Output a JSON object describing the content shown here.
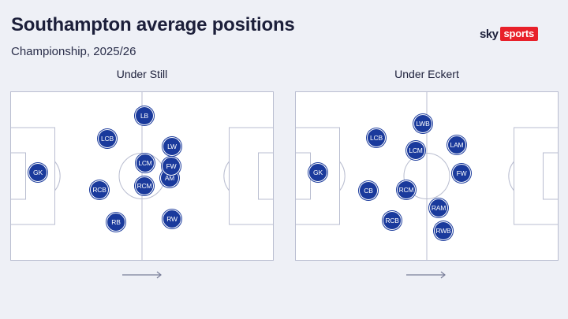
{
  "header": {
    "title": "Southampton average positions",
    "subtitle": "Championship, 2025/26"
  },
  "logo": {
    "sky": "sky",
    "sports": "sports",
    "brand_color": "#e8202a"
  },
  "pitches": [
    {
      "title": "Under Still",
      "players": [
        {
          "label": "GK"
        },
        {
          "label": "LB"
        },
        {
          "label": "LCB"
        },
        {
          "label": "LW"
        },
        {
          "label": "LCM"
        },
        {
          "label": "FW"
        },
        {
          "label": "AM"
        },
        {
          "label": "RCB"
        },
        {
          "label": "RCM"
        },
        {
          "label": "RB"
        },
        {
          "label": "RW"
        }
      ]
    },
    {
      "title": "Under Eckert",
      "players": [
        {
          "label": "GK"
        },
        {
          "label": "LWB"
        },
        {
          "label": "LCB"
        },
        {
          "label": "LCM"
        },
        {
          "label": "LAM"
        },
        {
          "label": "FW"
        },
        {
          "label": "CB"
        },
        {
          "label": "RCM"
        },
        {
          "label": "RAM"
        },
        {
          "label": "RCB"
        },
        {
          "label": "RWB"
        }
      ]
    }
  ],
  "colors": {
    "player_fill": "#1a3a9c",
    "pitch_line": "#b9bdd0",
    "background": "#eef0f6"
  },
  "icons": {
    "direction": "right-arrow-icon"
  }
}
